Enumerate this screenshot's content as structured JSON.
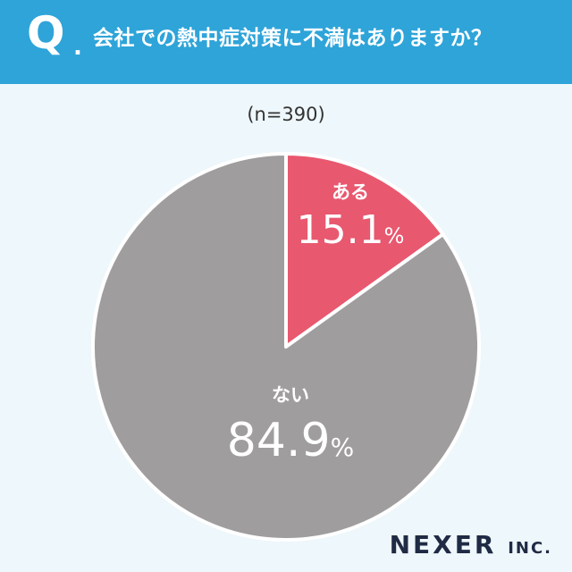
{
  "header": {
    "q_mark": "Q",
    "q_dot": ".",
    "question": "会社での熱中症対策に不満はありますか？",
    "background": "#2ea4d9"
  },
  "sample_size": "(n=390)",
  "chart_data": {
    "type": "pie",
    "title": "会社での熱中症対策に不満はありますか？",
    "slices": [
      {
        "label": "ある",
        "value": 15.1,
        "display": "15.1",
        "unit": "%",
        "color": "#e8586f"
      },
      {
        "label": "ない",
        "value": 84.9,
        "display": "84.9",
        "unit": "%",
        "color": "#a09d9f"
      }
    ],
    "start": "12 o'clock, clockwise"
  },
  "logo": {
    "main": "NEXER",
    "suffix": "INC."
  }
}
